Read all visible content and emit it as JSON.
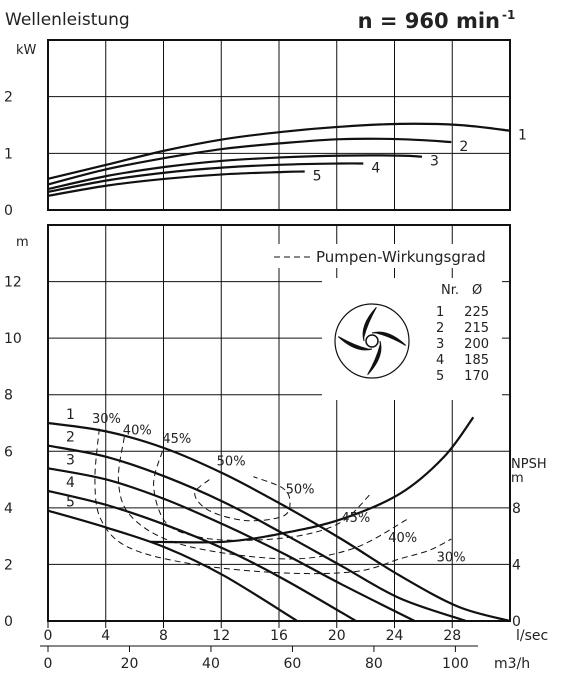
{
  "chart_data": [
    {
      "type": "line",
      "title": "Wellenleistung",
      "speed_label": "n  =  960  min",
      "speed_exp": "-1",
      "ylabel": "kW",
      "ylim": [
        0,
        3
      ],
      "xlim": [
        0,
        31.5
      ],
      "x_ticks": [
        "0",
        "4",
        "8",
        "12",
        "16",
        "20",
        "24",
        "28"
      ],
      "y_ticks": [
        "0",
        "1",
        "2"
      ],
      "series": [
        {
          "name": "1",
          "x": [
            0,
            4,
            8,
            12,
            16,
            20,
            24,
            28,
            31.5
          ],
          "y": [
            0.55,
            0.8,
            1.05,
            1.25,
            1.38,
            1.47,
            1.52,
            1.5,
            1.4
          ]
        },
        {
          "name": "2",
          "x": [
            0,
            4,
            8,
            12,
            16,
            20,
            24,
            27.5
          ],
          "y": [
            0.45,
            0.72,
            0.92,
            1.08,
            1.18,
            1.25,
            1.25,
            1.2
          ]
        },
        {
          "name": "3",
          "x": [
            0,
            4,
            8,
            12,
            16,
            20,
            24,
            25.5
          ],
          "y": [
            0.37,
            0.6,
            0.76,
            0.87,
            0.93,
            0.96,
            0.96,
            0.94
          ]
        },
        {
          "name": "4",
          "x": [
            0,
            4,
            8,
            12,
            16,
            20,
            21.5
          ],
          "y": [
            0.32,
            0.52,
            0.66,
            0.75,
            0.8,
            0.82,
            0.82
          ]
        },
        {
          "name": "5",
          "x": [
            0,
            4,
            8,
            12,
            16,
            17.5
          ],
          "y": [
            0.25,
            0.43,
            0.55,
            0.63,
            0.67,
            0.68
          ]
        }
      ]
    },
    {
      "type": "line",
      "ylabel": "m",
      "ylim": [
        0,
        14
      ],
      "xlim": [
        0,
        31.5
      ],
      "xlabel": "l/sec",
      "xlabel2": "m3/h",
      "x_ticks": [
        "0",
        "4",
        "8",
        "12",
        "16",
        "20",
        "24",
        "28"
      ],
      "x2_ticks": [
        "0",
        "20",
        "40",
        "60",
        "80",
        "100"
      ],
      "y_ticks": [
        "0",
        "2",
        "4",
        "6",
        "8",
        "10",
        "12"
      ],
      "y2_label": "NPSH",
      "y2_unit": "m",
      "y2_ticks": [
        "0",
        "4",
        "8"
      ],
      "legend": "Pumpen-Wirkungsgrad",
      "impeller_table": {
        "header": [
          "Nr.",
          "Ø"
        ],
        "rows": [
          [
            "1",
            "225"
          ],
          [
            "2",
            "215"
          ],
          [
            "3",
            "200"
          ],
          [
            "4",
            "185"
          ],
          [
            "5",
            "170"
          ]
        ]
      },
      "series": [
        {
          "name": "1",
          "x": [
            0,
            4,
            8,
            12,
            16,
            20,
            24,
            28,
            31.5
          ],
          "y": [
            7.0,
            6.7,
            6.1,
            5.2,
            4.1,
            2.9,
            1.6,
            0.5,
            0
          ]
        },
        {
          "name": "2",
          "x": [
            0,
            4,
            8,
            12,
            16,
            20,
            24,
            28.5
          ],
          "y": [
            6.2,
            5.8,
            5.1,
            4.2,
            3.1,
            1.95,
            0.8,
            0
          ]
        },
        {
          "name": "3",
          "x": [
            0,
            4,
            8,
            12,
            16,
            20,
            25
          ],
          "y": [
            5.4,
            5.0,
            4.3,
            3.4,
            2.4,
            1.3,
            0
          ]
        },
        {
          "name": "4",
          "x": [
            0,
            4,
            8,
            12,
            16,
            21
          ],
          "y": [
            4.6,
            4.1,
            3.4,
            2.55,
            1.5,
            0
          ]
        },
        {
          "name": "5",
          "x": [
            0,
            4,
            8,
            12,
            17
          ],
          "y": [
            3.9,
            3.3,
            2.6,
            1.6,
            0
          ]
        }
      ],
      "npsh": {
        "x": [
          7,
          12,
          16,
          20,
          24,
          27,
          29
        ],
        "y": [
          2.8,
          2.8,
          3.1,
          3.6,
          4.5,
          5.8,
          7.2
        ]
      },
      "efficiency": {
        "30": {
          "x": [
            3.5,
            3.2,
            3.6,
            5.5,
            10,
            16,
            21,
            24,
            26,
            27.5
          ],
          "y": [
            6.8,
            5.0,
            3.6,
            2.6,
            2.0,
            1.7,
            1.75,
            2.2,
            2.5,
            2.9
          ]
        },
        "40": {
          "x": [
            5.2,
            4.8,
            5.5,
            8,
            12,
            17,
            21,
            24.5
          ],
          "y": [
            6.5,
            5.0,
            3.8,
            2.9,
            2.4,
            2.2,
            2.6,
            3.6
          ]
        },
        "45": {
          "x": [
            7.8,
            7.2,
            8,
            10,
            13,
            17,
            20,
            22
          ],
          "y": [
            6.0,
            4.8,
            3.5,
            3.0,
            2.85,
            3.0,
            3.5,
            4.5
          ]
        },
        "50": {
          "x": [
            11,
            10,
            11,
            13.5,
            16,
            16.5,
            16,
            14
          ],
          "y": [
            5.0,
            4.5,
            3.9,
            3.55,
            3.7,
            4.2,
            4.7,
            5.1
          ]
        }
      },
      "eff_labels": [
        {
          "text": "30%",
          "x": 3.0,
          "y": 7.0
        },
        {
          "text": "40%",
          "x": 5.1,
          "y": 6.6
        },
        {
          "text": "45%",
          "x": 7.8,
          "y": 6.3
        },
        {
          "text": "50%",
          "x": 11.5,
          "y": 5.5
        },
        {
          "text": "50%",
          "x": 16.2,
          "y": 4.5
        },
        {
          "text": "45%",
          "x": 20.0,
          "y": 3.5
        },
        {
          "text": "40%",
          "x": 23.2,
          "y": 2.8
        },
        {
          "text": "30%",
          "x": 26.5,
          "y": 2.1
        }
      ]
    }
  ]
}
